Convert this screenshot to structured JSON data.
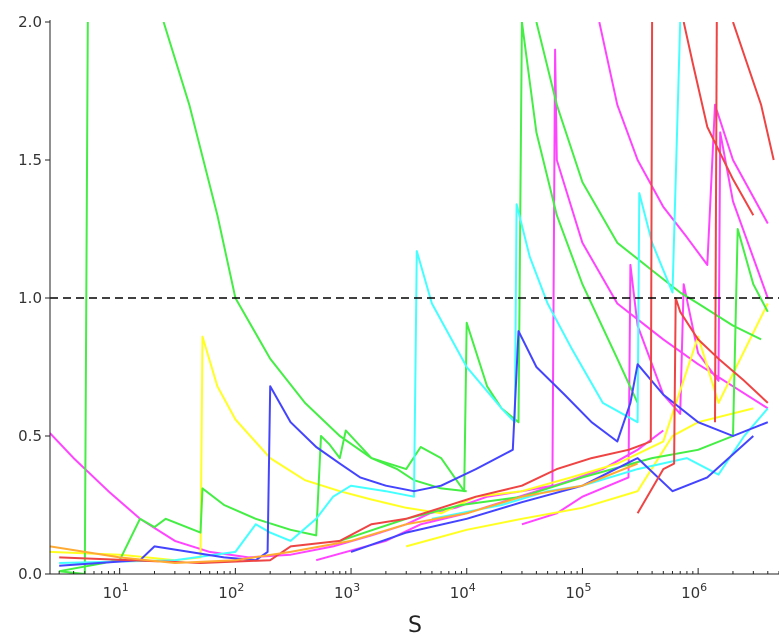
{
  "chart_data": {
    "type": "line",
    "title": "",
    "xlabel": "S",
    "ylabel": "",
    "x_scale": "log",
    "xlim": [
      2.5,
      50000000
    ],
    "ylim": [
      0,
      2.0
    ],
    "grid": false,
    "legend": "none",
    "y_ticks": [
      {
        "value": 0.0,
        "label": "0.0"
      },
      {
        "value": 0.5,
        "label": "0.5"
      },
      {
        "value": 1.0,
        "label": "1.0"
      },
      {
        "value": 1.5,
        "label": "1.5"
      },
      {
        "value": 2.0,
        "label": "2.0"
      }
    ],
    "x_ticks": [
      {
        "value": 10,
        "base": "10",
        "exp": "1"
      },
      {
        "value": 100,
        "base": "10",
        "exp": "2"
      },
      {
        "value": 1000,
        "base": "10",
        "exp": "3"
      },
      {
        "value": 10000,
        "base": "10",
        "exp": "4"
      },
      {
        "value": 100000,
        "base": "10",
        "exp": "5"
      },
      {
        "value": 1000000,
        "base": "10",
        "exp": "6"
      }
    ],
    "reference_line": {
      "y": 1.0,
      "style": "dashed",
      "color": "#000000"
    },
    "series": [
      {
        "color": "#ff44ff",
        "points": [
          [
            2.5,
            0.51
          ],
          [
            4,
            0.42
          ],
          [
            8,
            0.3
          ],
          [
            15,
            0.2
          ],
          [
            30,
            0.12
          ],
          [
            60,
            0.08
          ],
          [
            130,
            0.06
          ],
          [
            300,
            0.07
          ],
          [
            700,
            0.1
          ],
          [
            1500,
            0.14
          ],
          [
            3000,
            0.18
          ],
          [
            4800,
            0.22
          ],
          [
            8000,
            0.24
          ],
          [
            15000,
            0.28
          ],
          [
            30000,
            0.3
          ],
          [
            55000,
            0.32
          ],
          [
            58000,
            1.9
          ],
          [
            60000,
            1.5
          ],
          [
            100000,
            1.2
          ],
          [
            200000,
            0.98
          ],
          [
            500000,
            0.85
          ],
          [
            1000000,
            0.76
          ],
          [
            2000000,
            0.68
          ],
          [
            4000000,
            0.6
          ]
        ]
      },
      {
        "color": "#ff44ff",
        "points": [
          [
            30000,
            0.18
          ],
          [
            60000,
            0.22
          ],
          [
            100000,
            0.28
          ],
          [
            250000,
            0.35
          ],
          [
            260000,
            1.12
          ],
          [
            300000,
            0.9
          ],
          [
            500000,
            0.65
          ],
          [
            700000,
            0.58
          ],
          [
            750000,
            1.05
          ],
          [
            1000000,
            0.8
          ],
          [
            1500000,
            0.7
          ],
          [
            1550000,
            1.6
          ],
          [
            2000000,
            1.35
          ],
          [
            4000000,
            1.0
          ]
        ]
      },
      {
        "color": "#ff44ff",
        "points": [
          [
            140000,
            2.0
          ],
          [
            200000,
            1.7
          ],
          [
            300000,
            1.5
          ],
          [
            500000,
            1.33
          ],
          [
            800000,
            1.22
          ],
          [
            1200000,
            1.12
          ],
          [
            1400000,
            1.7
          ],
          [
            2000000,
            1.5
          ],
          [
            4000000,
            1.27
          ]
        ]
      },
      {
        "color": "#ff44ff",
        "points": [
          [
            500,
            0.05
          ],
          [
            2000,
            0.12
          ],
          [
            4000,
            0.18
          ],
          [
            10000,
            0.22
          ],
          [
            20000,
            0.26
          ],
          [
            40000,
            0.3
          ],
          [
            80000,
            0.34
          ],
          [
            150000,
            0.38
          ],
          [
            300000,
            0.45
          ],
          [
            500000,
            0.52
          ]
        ]
      },
      {
        "color": "#ffff22",
        "points": [
          [
            2.5,
            0.08
          ],
          [
            10,
            0.07
          ],
          [
            30,
            0.05
          ],
          [
            50,
            0.06
          ],
          [
            52,
            0.86
          ],
          [
            70,
            0.68
          ],
          [
            100,
            0.56
          ],
          [
            200,
            0.42
          ],
          [
            400,
            0.34
          ],
          [
            800,
            0.3
          ],
          [
            1500,
            0.27
          ],
          [
            3000,
            0.24
          ],
          [
            6000,
            0.22
          ],
          [
            12000,
            0.28
          ],
          [
            30000,
            0.3
          ],
          [
            80000,
            0.35
          ],
          [
            200000,
            0.4
          ],
          [
            500000,
            0.48
          ],
          [
            1000000,
            0.86
          ],
          [
            1500000,
            0.62
          ],
          [
            4000000,
            0.98
          ]
        ]
      },
      {
        "color": "#ffff22",
        "points": [
          [
            3000,
            0.1
          ],
          [
            10000,
            0.16
          ],
          [
            30000,
            0.2
          ],
          [
            100000,
            0.24
          ],
          [
            300000,
            0.3
          ],
          [
            600000,
            0.5
          ],
          [
            1000000,
            0.55
          ],
          [
            3000000,
            0.6
          ]
        ]
      },
      {
        "color": "#44ee44",
        "points": [
          [
            3,
            0.01
          ],
          [
            5,
            0.0
          ],
          [
            5.3,
            2.0
          ]
        ]
      },
      {
        "color": "#44ee44",
        "points": [
          [
            24,
            2.0
          ],
          [
            40,
            1.7
          ],
          [
            70,
            1.3
          ],
          [
            100,
            1.0
          ],
          [
            200,
            0.78
          ],
          [
            400,
            0.62
          ],
          [
            800,
            0.5
          ],
          [
            1500,
            0.42
          ],
          [
            2500,
            0.38
          ],
          [
            3500,
            0.34
          ],
          [
            6000,
            0.31
          ],
          [
            10000,
            0.3
          ]
        ]
      },
      {
        "color": "#44ee44",
        "points": [
          [
            3,
            0.01
          ],
          [
            10,
            0.05
          ],
          [
            15,
            0.2
          ],
          [
            20,
            0.17
          ],
          [
            25,
            0.2
          ],
          [
            50,
            0.15
          ],
          [
            52,
            0.31
          ],
          [
            80,
            0.25
          ],
          [
            150,
            0.2
          ],
          [
            300,
            0.16
          ],
          [
            500,
            0.14
          ],
          [
            550,
            0.5
          ],
          [
            650,
            0.47
          ],
          [
            800,
            0.42
          ],
          [
            900,
            0.52
          ],
          [
            1500,
            0.42
          ],
          [
            3000,
            0.38
          ],
          [
            4000,
            0.46
          ],
          [
            6000,
            0.42
          ],
          [
            9500,
            0.3
          ],
          [
            10000,
            0.91
          ],
          [
            15000,
            0.68
          ],
          [
            20000,
            0.6
          ],
          [
            28000,
            0.55
          ],
          [
            30000,
            2.0
          ],
          [
            40000,
            1.6
          ],
          [
            60000,
            1.3
          ],
          [
            100000,
            1.05
          ],
          [
            200000,
            0.78
          ],
          [
            300000,
            0.62
          ]
        ]
      },
      {
        "color": "#44ee44",
        "points": [
          [
            800,
            0.12
          ],
          [
            3000,
            0.2
          ],
          [
            9000,
            0.25
          ],
          [
            30000,
            0.28
          ],
          [
            100000,
            0.35
          ],
          [
            400000,
            0.42
          ],
          [
            1000000,
            0.45
          ],
          [
            2000000,
            0.5
          ],
          [
            2200000,
            1.25
          ],
          [
            3000000,
            1.05
          ],
          [
            4000000,
            0.95
          ]
        ]
      },
      {
        "color": "#44ee44",
        "points": [
          [
            40000,
            2.0
          ],
          [
            60000,
            1.7
          ],
          [
            100000,
            1.42
          ],
          [
            200000,
            1.2
          ],
          [
            400000,
            1.1
          ],
          [
            700000,
            1.02
          ],
          [
            1000000,
            0.98
          ],
          [
            2000000,
            0.9
          ],
          [
            3500000,
            0.85
          ]
        ]
      },
      {
        "color": "#44ffff",
        "points": [
          [
            3,
            0.04
          ],
          [
            30,
            0.05
          ],
          [
            100,
            0.08
          ],
          [
            150,
            0.18
          ],
          [
            200,
            0.15
          ],
          [
            300,
            0.12
          ],
          [
            500,
            0.2
          ],
          [
            700,
            0.28
          ],
          [
            1000,
            0.32
          ],
          [
            2000,
            0.3
          ],
          [
            3500,
            0.28
          ],
          [
            3700,
            1.17
          ],
          [
            5000,
            0.98
          ],
          [
            10000,
            0.75
          ],
          [
            20000,
            0.6
          ],
          [
            26000,
            0.55
          ],
          [
            27000,
            1.34
          ],
          [
            35000,
            1.15
          ],
          [
            50000,
            0.98
          ],
          [
            80000,
            0.82
          ],
          [
            150000,
            0.62
          ],
          [
            300000,
            0.55
          ],
          [
            310000,
            1.38
          ],
          [
            400000,
            1.2
          ],
          [
            600000,
            1.02
          ],
          [
            700000,
            2.0
          ]
        ]
      },
      {
        "color": "#44ffff",
        "points": [
          [
            5000,
            0.2
          ],
          [
            20000,
            0.25
          ],
          [
            50000,
            0.3
          ],
          [
            100000,
            0.32
          ],
          [
            300000,
            0.38
          ],
          [
            800000,
            0.42
          ],
          [
            1500000,
            0.36
          ],
          [
            2500000,
            0.5
          ],
          [
            4000000,
            0.6
          ]
        ]
      },
      {
        "color": "#4444ff",
        "points": [
          [
            3,
            0.03
          ],
          [
            15,
            0.05
          ],
          [
            20,
            0.1
          ],
          [
            40,
            0.08
          ],
          [
            80,
            0.06
          ],
          [
            150,
            0.05
          ],
          [
            190,
            0.08
          ],
          [
            200,
            0.68
          ],
          [
            300,
            0.55
          ],
          [
            500,
            0.46
          ],
          [
            800,
            0.4
          ],
          [
            1200,
            0.35
          ],
          [
            2000,
            0.32
          ],
          [
            3500,
            0.3
          ],
          [
            6000,
            0.32
          ],
          [
            12000,
            0.38
          ],
          [
            25000,
            0.45
          ],
          [
            28000,
            0.88
          ],
          [
            40000,
            0.75
          ],
          [
            70000,
            0.65
          ],
          [
            120000,
            0.55
          ],
          [
            200000,
            0.48
          ],
          [
            260000,
            0.62
          ],
          [
            300000,
            0.76
          ],
          [
            500000,
            0.65
          ],
          [
            1000000,
            0.55
          ],
          [
            2000000,
            0.5
          ],
          [
            4000000,
            0.55
          ]
        ]
      },
      {
        "color": "#4444ff",
        "points": [
          [
            1000,
            0.08
          ],
          [
            3000,
            0.15
          ],
          [
            10000,
            0.2
          ],
          [
            30000,
            0.26
          ],
          [
            100000,
            0.32
          ],
          [
            300000,
            0.42
          ],
          [
            600000,
            0.3
          ],
          [
            1200000,
            0.35
          ],
          [
            3000000,
            0.5
          ]
        ]
      },
      {
        "color": "#ee4444",
        "points": [
          [
            3,
            0.06
          ],
          [
            50,
            0.04
          ],
          [
            200,
            0.05
          ],
          [
            300,
            0.1
          ],
          [
            800,
            0.12
          ],
          [
            1500,
            0.18
          ],
          [
            3000,
            0.2
          ],
          [
            6000,
            0.24
          ],
          [
            12000,
            0.28
          ],
          [
            30000,
            0.32
          ],
          [
            60000,
            0.38
          ],
          [
            120000,
            0.42
          ],
          [
            250000,
            0.45
          ],
          [
            390000,
            0.48
          ],
          [
            400000,
            2.0
          ]
        ]
      },
      {
        "color": "#ee4444",
        "points": [
          [
            300000,
            0.22
          ],
          [
            500000,
            0.38
          ],
          [
            620000,
            0.4
          ],
          [
            640000,
            1.0
          ],
          [
            700000,
            0.95
          ],
          [
            1000000,
            0.85
          ],
          [
            1500000,
            0.78
          ],
          [
            2500000,
            0.7
          ],
          [
            4000000,
            0.62
          ]
        ]
      },
      {
        "color": "#ee4444",
        "points": [
          [
            1400000,
            0.55
          ],
          [
            1450000,
            2.0
          ]
        ]
      },
      {
        "color": "#ee4444",
        "points": [
          [
            750000,
            2.0
          ],
          [
            900000,
            1.85
          ],
          [
            1200000,
            1.62
          ],
          [
            2000000,
            1.43
          ],
          [
            3000000,
            1.3
          ]
        ]
      },
      {
        "color": "#ee4444",
        "points": [
          [
            2000000,
            2.0
          ],
          [
            2500000,
            1.88
          ],
          [
            3500000,
            1.7
          ],
          [
            4500000,
            1.5
          ]
        ]
      },
      {
        "color": "#ffaa33",
        "points": [
          [
            2.5,
            0.1
          ],
          [
            10,
            0.06
          ],
          [
            30,
            0.04
          ],
          [
            100,
            0.05
          ],
          [
            300,
            0.08
          ],
          [
            1000,
            0.12
          ],
          [
            3000,
            0.18
          ],
          [
            10000,
            0.22
          ],
          [
            30000,
            0.28
          ],
          [
            100000,
            0.32
          ],
          [
            300000,
            0.4
          ]
        ]
      }
    ]
  }
}
